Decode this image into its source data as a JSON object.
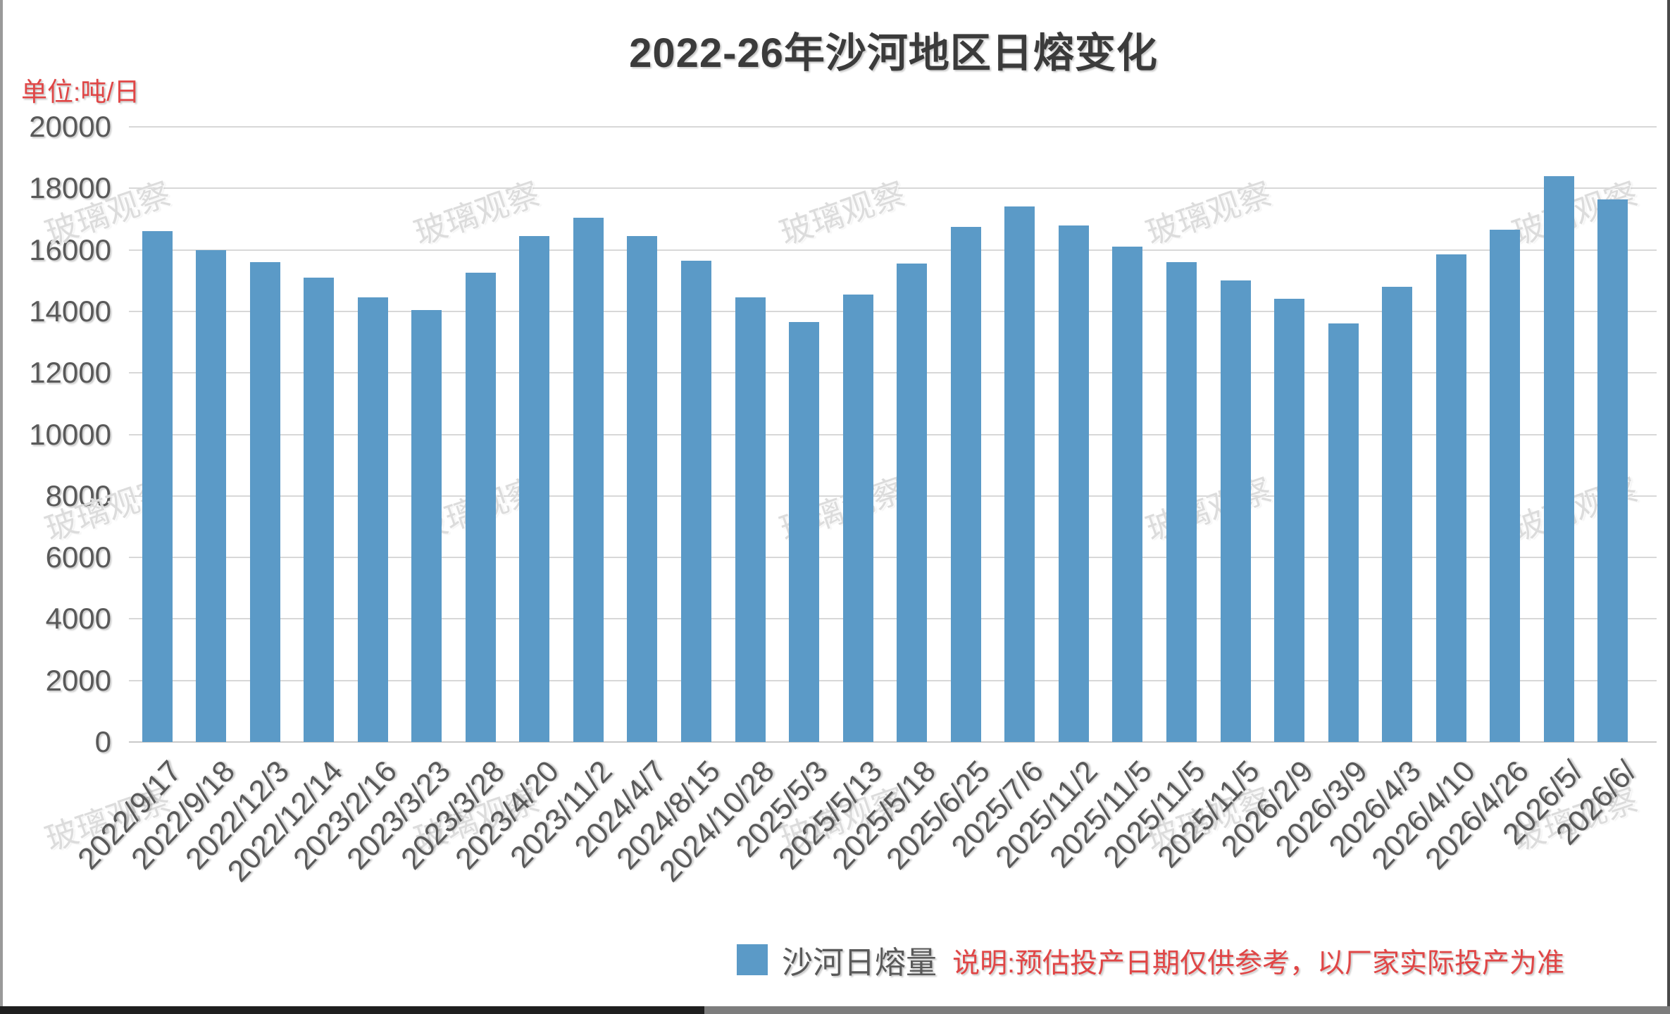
{
  "title": "2022-26年沙河地区日熔变化",
  "unit_label": "单位:吨/日",
  "legend": {
    "label": "沙河日熔量",
    "swatch_color": "#5B9AC7"
  },
  "note": "说明:预估投产日期仅供参考，以厂家实际投产为准",
  "watermark": {
    "text": "玻璃观察"
  },
  "colors": {
    "bar": "#5B9AC7",
    "grid": "#d8d8d8",
    "axis_text": "#595959",
    "title_text": "#3b3b3b",
    "accent_red": "#e04646",
    "watermark": "#dcdcdc"
  },
  "chart_data": {
    "type": "bar",
    "title": "2022-26年沙河地区日熔变化",
    "unit": "吨/日",
    "series_name": "沙河日熔量",
    "categories": [
      "2022/9/17",
      "2022/9/18",
      "2022/12/3",
      "2022/12/14",
      "2023/2/16",
      "2023/3/23",
      "2023/3/28",
      "2023/4/20",
      "2023/11/2",
      "2024/4/7",
      "2024/8/15",
      "2024/10/28",
      "2025/5/3",
      "2025/5/13",
      "2025/5/18",
      "2025/6/25",
      "2025/7/6",
      "2025/11/2",
      "2025/11/5",
      "2025/11/5",
      "2025/11/5",
      "2026/2/9",
      "2026/3/9",
      "2026/4/3",
      "2026/4/10",
      "2026/4/26",
      "2026/5/",
      "2026/6/"
    ],
    "values": [
      16600,
      16000,
      15600,
      15100,
      14450,
      14050,
      15250,
      16450,
      17050,
      16450,
      15650,
      14450,
      13650,
      14550,
      15550,
      16750,
      17400,
      16800,
      16100,
      15600,
      15000,
      14400,
      13600,
      14800,
      15850,
      16650,
      18400,
      17650
    ],
    "xlabel": "",
    "ylabel": "吨/日",
    "ylim": [
      0,
      20000
    ],
    "ytick_step": 2000,
    "grid": true,
    "legend_position": "bottom"
  }
}
